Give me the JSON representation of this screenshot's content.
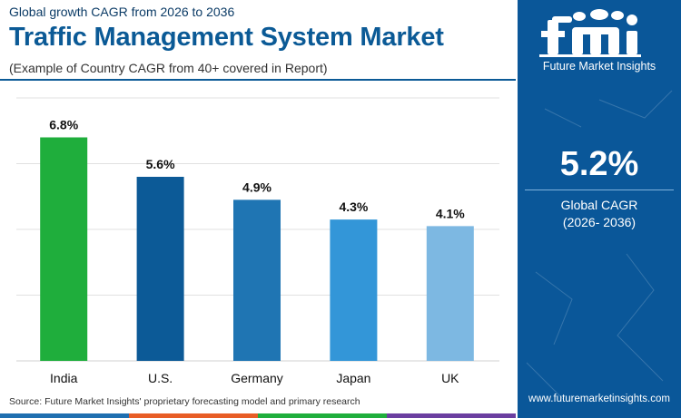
{
  "header": {
    "top_line": "Global growth CAGR from 2026 to 2036",
    "title": "Traffic Management System Market",
    "subtitle": "(Example of Country CAGR from 40+ covered in Report)"
  },
  "chart_data": {
    "type": "bar",
    "categories": [
      "India",
      "U.S.",
      "Germany",
      "Japan",
      "UK"
    ],
    "values": [
      6.8,
      5.6,
      4.9,
      4.3,
      4.1
    ],
    "value_labels": [
      "6.8%",
      "5.6%",
      "4.9%",
      "4.3%",
      "4.1%"
    ],
    "ylim": [
      0,
      8
    ],
    "grid": true,
    "bar_colors": [
      "#1fae3c",
      "#0c5a97",
      "#1f75b3",
      "#3396d8",
      "#7db8e2"
    ]
  },
  "source": "Source: Future Market Insights' proprietary forecasting model and primary research",
  "side_panel": {
    "brand_name": "Future Market Insights",
    "logo_text": "fmi",
    "stat_value": "5.2%",
    "stat_label": "Global CAGR",
    "stat_period": "(2026- 2036)",
    "website": "www.futuremarketinsights.com"
  },
  "footer_bar_colors": [
    "#1f6fb0",
    "#e85d26",
    "#1fae3c",
    "#6b3fa0"
  ]
}
